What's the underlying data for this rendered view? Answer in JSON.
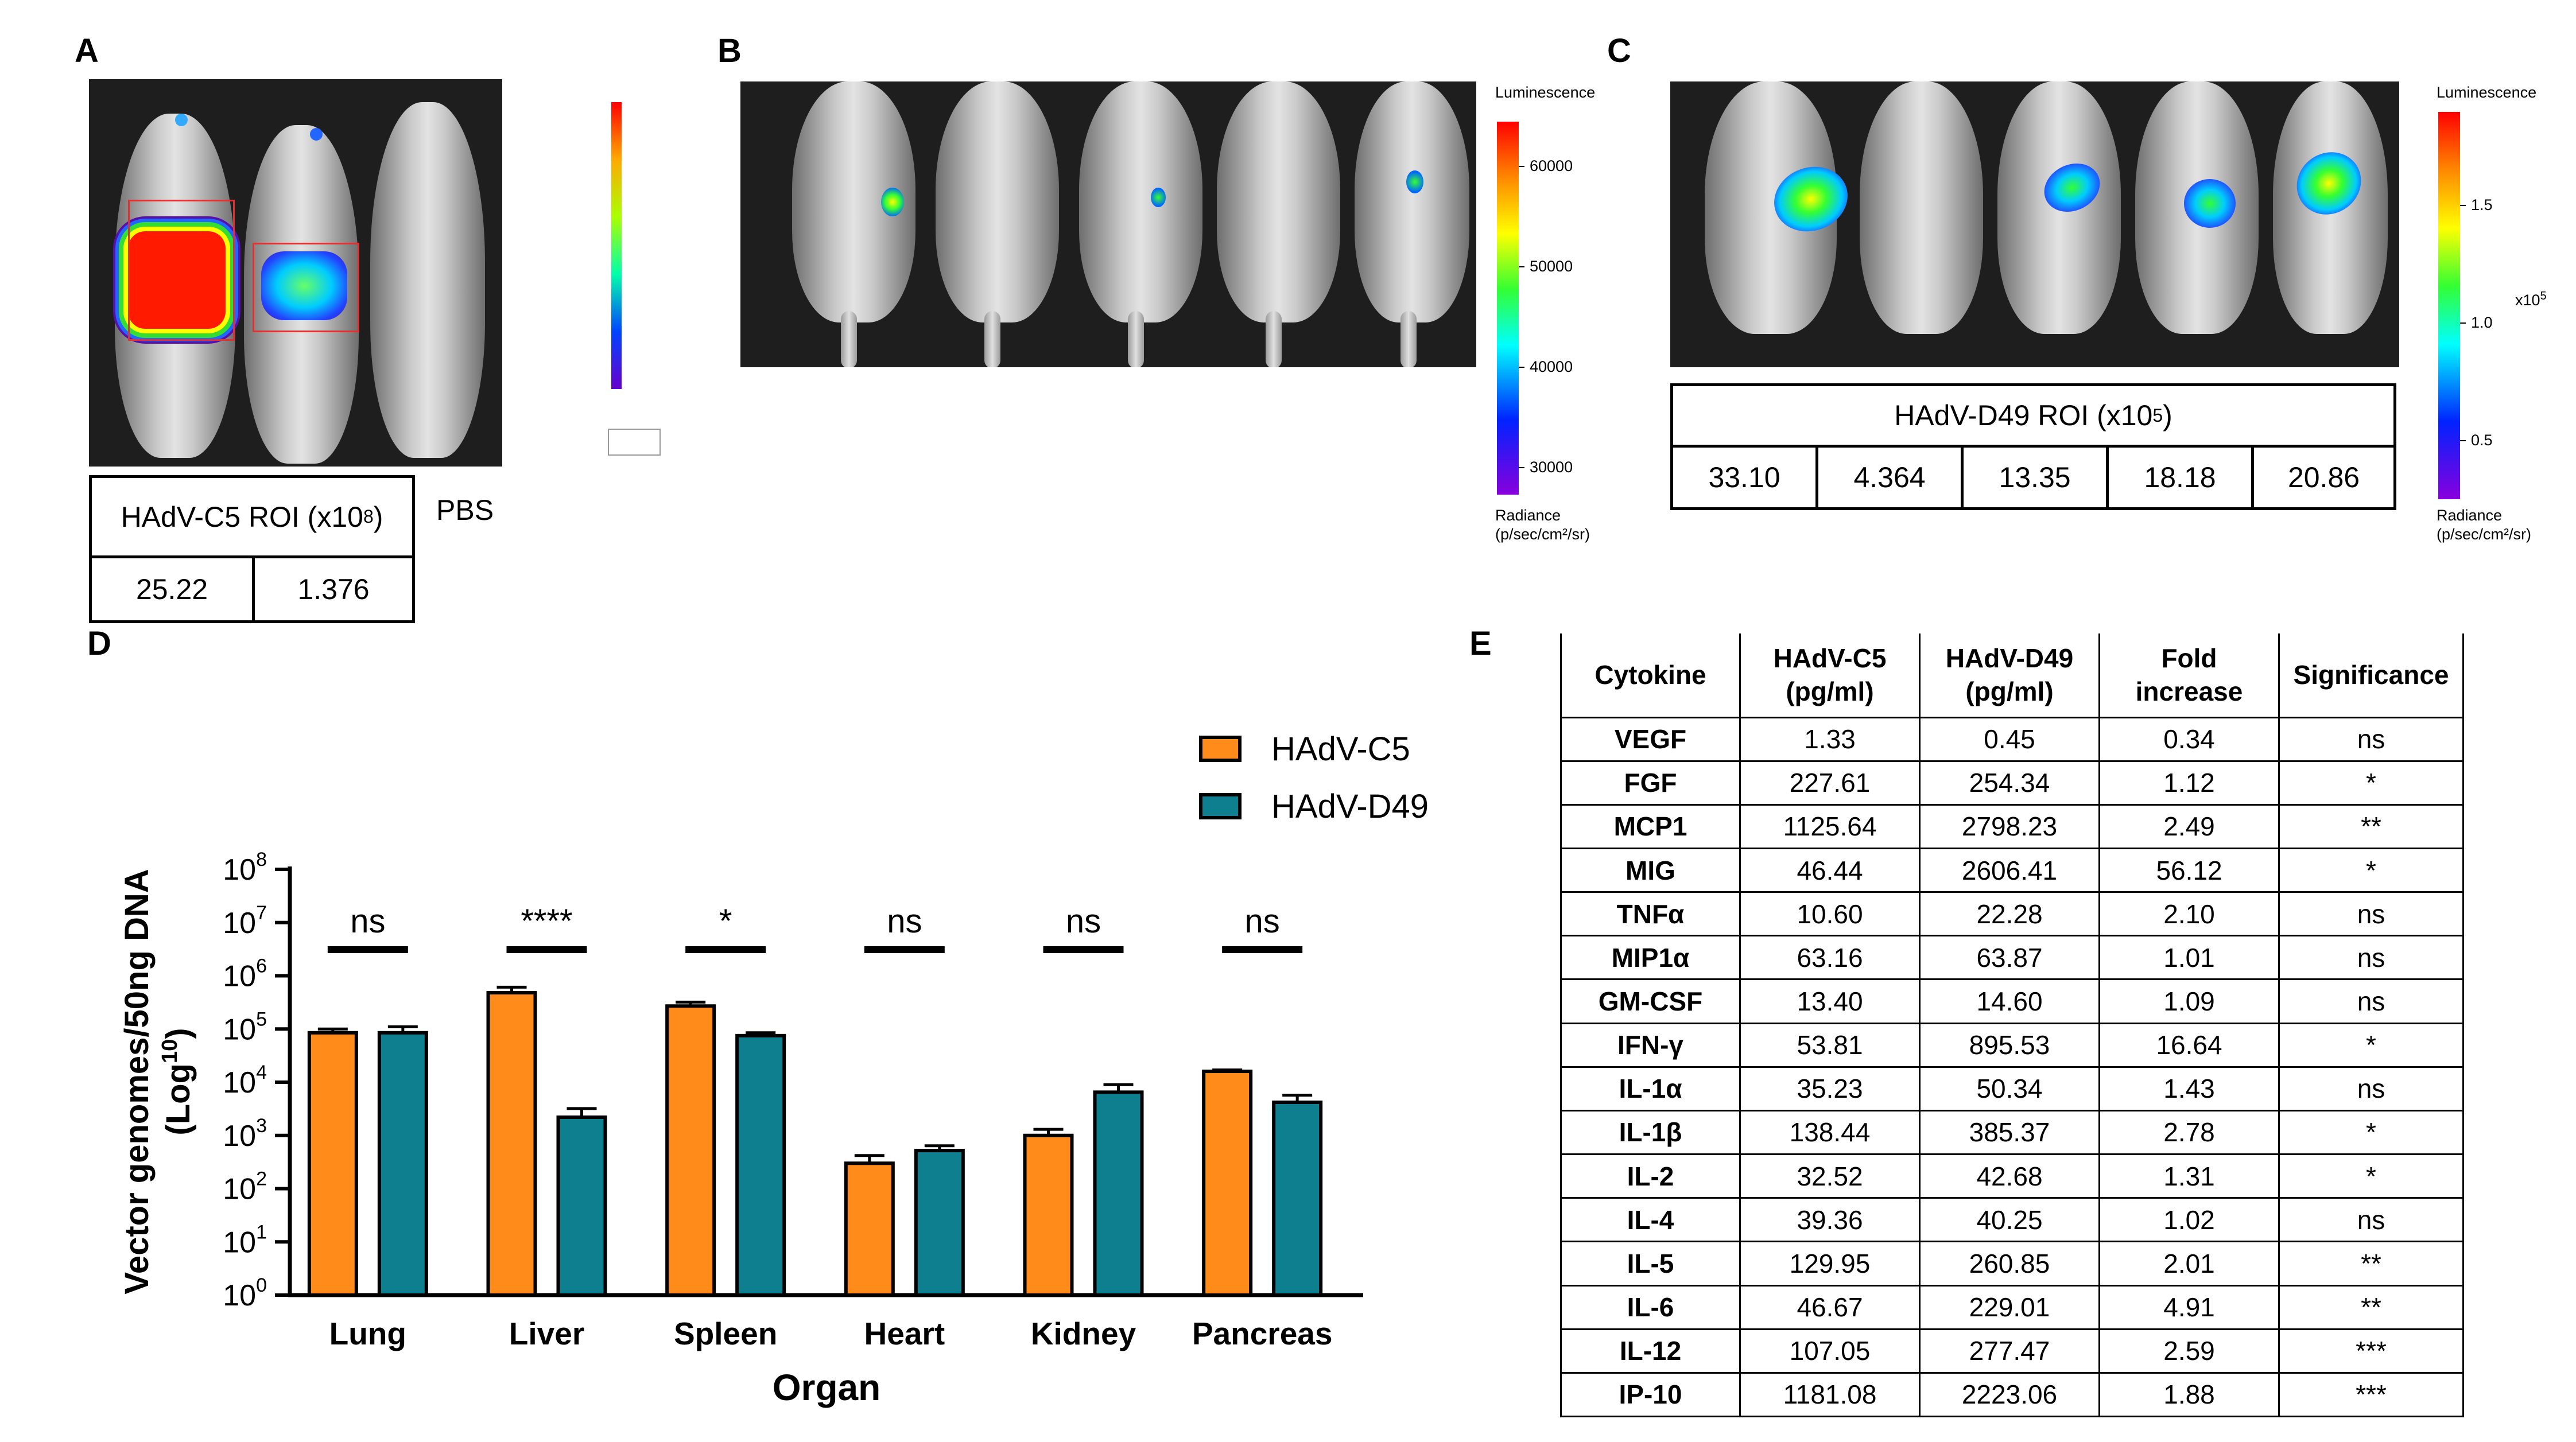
{
  "panels": {
    "A": {
      "label": "A",
      "table_header": "HAdV-C5 ROI (x10",
      "table_header_sup": "8",
      "table_header_end": ")",
      "values": [
        "25.22",
        "1.376"
      ],
      "pbs": "PBS"
    },
    "B": {
      "label": "B",
      "colorbar_title": "Luminescence",
      "colorbar_ticks": [
        "60000",
        "50000",
        "40000",
        "30000"
      ],
      "colorbar_unit_line1": "Radiance",
      "colorbar_unit_line2": "(p/sec/cm²/sr)"
    },
    "C": {
      "label": "C",
      "table_header": "HAdV-D49 ROI (x10",
      "table_header_sup": "5",
      "table_header_end": ")",
      "values": [
        "33.10",
        "4.364",
        "13.35",
        "18.18",
        "20.86"
      ],
      "colorbar_title": "Luminescence",
      "colorbar_ticks": [
        "1.5",
        "1.0",
        "0.5"
      ],
      "colorbar_scale": "x10",
      "colorbar_scale_sup": "5",
      "colorbar_unit_line1": "Radiance",
      "colorbar_unit_line2": "(p/sec/cm²/sr)"
    },
    "D": {
      "label": "D"
    },
    "E": {
      "label": "E"
    }
  },
  "chart_data": {
    "type": "bar",
    "xlabel": "Organ",
    "ylabel": "Vector genomes/50ng DNA",
    "ylabel_unit": "(Log",
    "ylabel_unit_sup": "10",
    "ylabel_unit_end": ")",
    "y_scale": "log",
    "ylim": [
      1,
      100000000
    ],
    "y_tick_base": "10",
    "y_tick_exponents": [
      "0",
      "1",
      "2",
      "3",
      "4",
      "5",
      "6",
      "7",
      "8"
    ],
    "categories": [
      "Lung",
      "Liver",
      "Spleen",
      "Heart",
      "Kidney",
      "Pancreas"
    ],
    "series": [
      {
        "name": "HAdV-C5",
        "color": "#FF8C1A",
        "values": [
          85000,
          480000,
          270000,
          300,
          1000,
          16000
        ],
        "errors": [
          15000,
          130000,
          50000,
          120,
          300,
          1000
        ]
      },
      {
        "name": "HAdV-D49",
        "color": "#0E7F8F",
        "values": [
          85000,
          2200,
          75000,
          520,
          6500,
          4200
        ],
        "errors": [
          25000,
          1000,
          10000,
          120,
          2500,
          1500
        ]
      }
    ],
    "significance": [
      "ns",
      "****",
      "*",
      "ns",
      "ns",
      "ns"
    ],
    "legend_position": "top-right"
  },
  "cytokine_table": {
    "headers": [
      [
        "Cytokine",
        ""
      ],
      [
        "HAdV-C5",
        "(pg/ml)"
      ],
      [
        "HAdV-D49",
        "(pg/ml)"
      ],
      [
        "Fold",
        "increase"
      ],
      [
        "Significance",
        ""
      ]
    ],
    "rows": [
      [
        "VEGF",
        "1.33",
        "0.45",
        "0.34",
        "ns"
      ],
      [
        "FGF",
        "227.61",
        "254.34",
        "1.12",
        "*"
      ],
      [
        "MCP1",
        "1125.64",
        "2798.23",
        "2.49",
        "**"
      ],
      [
        "MIG",
        "46.44",
        "2606.41",
        "56.12",
        "*"
      ],
      [
        "TNFα",
        "10.60",
        "22.28",
        "2.10",
        "ns"
      ],
      [
        "MIP1α",
        "63.16",
        "63.87",
        "1.01",
        "ns"
      ],
      [
        "GM-CSF",
        "13.40",
        "14.60",
        "1.09",
        "ns"
      ],
      [
        "IFN-γ",
        "53.81",
        "895.53",
        "16.64",
        "*"
      ],
      [
        "IL-1α",
        "35.23",
        "50.34",
        "1.43",
        "ns"
      ],
      [
        "IL-1β",
        "138.44",
        "385.37",
        "2.78",
        "*"
      ],
      [
        "IL-2",
        "32.52",
        "42.68",
        "1.31",
        "*"
      ],
      [
        "IL-4",
        "39.36",
        "40.25",
        "1.02",
        "ns"
      ],
      [
        "IL-5",
        "129.95",
        "260.85",
        "2.01",
        "**"
      ],
      [
        "IL-6",
        "46.67",
        "229.01",
        "4.91",
        "**"
      ],
      [
        "IL-12",
        "107.05",
        "277.47",
        "2.59",
        "***"
      ],
      [
        "IP-10",
        "1181.08",
        "2223.06",
        "1.88",
        "***"
      ]
    ]
  }
}
